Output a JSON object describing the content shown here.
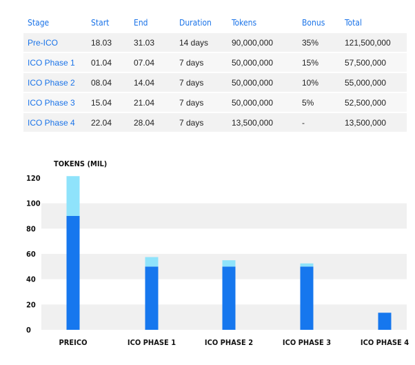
{
  "table": {
    "headers": [
      "Stage",
      "Start",
      "End",
      "Duration",
      "Tokens",
      "Bonus",
      "Total"
    ],
    "rows": [
      [
        "Pre-ICO",
        "18.03",
        "31.03",
        "14 days",
        "90,000,000",
        "35%",
        "121,500,000"
      ],
      [
        "ICO Phase 1",
        "01.04",
        "07.04",
        "7 days",
        "50,000,000",
        "15%",
        "57,500,000"
      ],
      [
        "ICO Phase 2",
        "08.04",
        "14.04",
        "7 days",
        "50,000,000",
        "10%",
        "55,000,000"
      ],
      [
        "ICO Phase 3",
        "15.04",
        "21.04",
        "7 days",
        "50,000,000",
        "5%",
        "52,500,000"
      ],
      [
        "ICO Phase 4",
        "22.04",
        "28.04",
        "7 days",
        "13,500,000",
        "-",
        "13,500,000"
      ]
    ]
  },
  "chart_data": {
    "type": "bar",
    "stacked": true,
    "ylabel": "TOKENS (MIL)",
    "ylim": [
      0,
      120
    ],
    "yticks": [
      0,
      20,
      40,
      60,
      80,
      100,
      120
    ],
    "grid": "horizontal bands",
    "categories": [
      "PREICO",
      "ICO PHASE 1",
      "ICO PHASE 2",
      "ICO PHASE 3",
      "ICO PHASE 4"
    ],
    "series": [
      {
        "color": "#1677ee",
        "values": [
          90,
          50,
          50,
          50,
          13.5
        ]
      },
      {
        "color": "#8fe3fb",
        "values": [
          31.5,
          7.5,
          5,
          2.5,
          0
        ]
      }
    ]
  }
}
